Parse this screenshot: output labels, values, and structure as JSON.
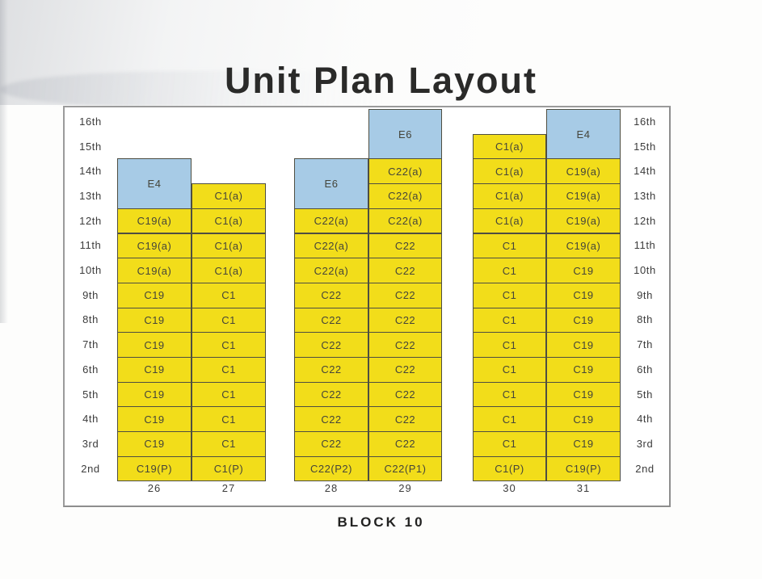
{
  "title": "Unit Plan Layout",
  "block_label": "BLOCK 10",
  "floors": [
    "16th",
    "15th",
    "14th",
    "13th",
    "12th",
    "11th",
    "10th",
    "9th",
    "8th",
    "7th",
    "6th",
    "5th",
    "4th",
    "3rd",
    "2nd"
  ],
  "colors": {
    "unit_yellow": "#F2DD1A",
    "unit_blue": "#A7CBE6",
    "cell_border": "#4E4E42",
    "frame_border": "#9B9B9B"
  },
  "stacks": [
    {
      "number": "26",
      "units": [
        {
          "label": "E4",
          "top_floor": "14th",
          "span": 2,
          "color": "blue"
        },
        {
          "label": "C19(a)",
          "top_floor": "12th",
          "span": 1,
          "color": "yellow"
        },
        {
          "label": "C19(a)",
          "top_floor": "11th",
          "span": 1,
          "color": "yellow"
        },
        {
          "label": "C19(a)",
          "top_floor": "10th",
          "span": 1,
          "color": "yellow"
        },
        {
          "label": "C19",
          "top_floor": "9th",
          "span": 1,
          "color": "yellow"
        },
        {
          "label": "C19",
          "top_floor": "8th",
          "span": 1,
          "color": "yellow"
        },
        {
          "label": "C19",
          "top_floor": "7th",
          "span": 1,
          "color": "yellow"
        },
        {
          "label": "C19",
          "top_floor": "6th",
          "span": 1,
          "color": "yellow"
        },
        {
          "label": "C19",
          "top_floor": "5th",
          "span": 1,
          "color": "yellow"
        },
        {
          "label": "C19",
          "top_floor": "4th",
          "span": 1,
          "color": "yellow"
        },
        {
          "label": "C19",
          "top_floor": "3rd",
          "span": 1,
          "color": "yellow"
        },
        {
          "label": "C19(P)",
          "top_floor": "2nd",
          "span": 1,
          "color": "yellow"
        }
      ]
    },
    {
      "number": "27",
      "units": [
        {
          "label": "C1(a)",
          "top_floor": "13th",
          "span": 1,
          "color": "yellow"
        },
        {
          "label": "C1(a)",
          "top_floor": "12th",
          "span": 1,
          "color": "yellow"
        },
        {
          "label": "C1(a)",
          "top_floor": "11th",
          "span": 1,
          "color": "yellow"
        },
        {
          "label": "C1(a)",
          "top_floor": "10th",
          "span": 1,
          "color": "yellow"
        },
        {
          "label": "C1",
          "top_floor": "9th",
          "span": 1,
          "color": "yellow"
        },
        {
          "label": "C1",
          "top_floor": "8th",
          "span": 1,
          "color": "yellow"
        },
        {
          "label": "C1",
          "top_floor": "7th",
          "span": 1,
          "color": "yellow"
        },
        {
          "label": "C1",
          "top_floor": "6th",
          "span": 1,
          "color": "yellow"
        },
        {
          "label": "C1",
          "top_floor": "5th",
          "span": 1,
          "color": "yellow"
        },
        {
          "label": "C1",
          "top_floor": "4th",
          "span": 1,
          "color": "yellow"
        },
        {
          "label": "C1",
          "top_floor": "3rd",
          "span": 1,
          "color": "yellow"
        },
        {
          "label": "C1(P)",
          "top_floor": "2nd",
          "span": 1,
          "color": "yellow"
        }
      ]
    },
    {
      "number": "28",
      "units": [
        {
          "label": "E6",
          "top_floor": "14th",
          "span": 2,
          "color": "blue"
        },
        {
          "label": "C22(a)",
          "top_floor": "12th",
          "span": 1,
          "color": "yellow"
        },
        {
          "label": "C22(a)",
          "top_floor": "11th",
          "span": 1,
          "color": "yellow"
        },
        {
          "label": "C22(a)",
          "top_floor": "10th",
          "span": 1,
          "color": "yellow"
        },
        {
          "label": "C22",
          "top_floor": "9th",
          "span": 1,
          "color": "yellow"
        },
        {
          "label": "C22",
          "top_floor": "8th",
          "span": 1,
          "color": "yellow"
        },
        {
          "label": "C22",
          "top_floor": "7th",
          "span": 1,
          "color": "yellow"
        },
        {
          "label": "C22",
          "top_floor": "6th",
          "span": 1,
          "color": "yellow"
        },
        {
          "label": "C22",
          "top_floor": "5th",
          "span": 1,
          "color": "yellow"
        },
        {
          "label": "C22",
          "top_floor": "4th",
          "span": 1,
          "color": "yellow"
        },
        {
          "label": "C22",
          "top_floor": "3rd",
          "span": 1,
          "color": "yellow"
        },
        {
          "label": "C22(P2)",
          "top_floor": "2nd",
          "span": 1,
          "color": "yellow"
        }
      ]
    },
    {
      "number": "29",
      "units": [
        {
          "label": "E6",
          "top_floor": "16th",
          "span": 2,
          "color": "blue"
        },
        {
          "label": "C22(a)",
          "top_floor": "14th",
          "span": 1,
          "color": "yellow"
        },
        {
          "label": "C22(a)",
          "top_floor": "13th",
          "span": 1,
          "color": "yellow"
        },
        {
          "label": "C22(a)",
          "top_floor": "12th",
          "span": 1,
          "color": "yellow"
        },
        {
          "label": "C22",
          "top_floor": "11th",
          "span": 1,
          "color": "yellow"
        },
        {
          "label": "C22",
          "top_floor": "10th",
          "span": 1,
          "color": "yellow"
        },
        {
          "label": "C22",
          "top_floor": "9th",
          "span": 1,
          "color": "yellow"
        },
        {
          "label": "C22",
          "top_floor": "8th",
          "span": 1,
          "color": "yellow"
        },
        {
          "label": "C22",
          "top_floor": "7th",
          "span": 1,
          "color": "yellow"
        },
        {
          "label": "C22",
          "top_floor": "6th",
          "span": 1,
          "color": "yellow"
        },
        {
          "label": "C22",
          "top_floor": "5th",
          "span": 1,
          "color": "yellow"
        },
        {
          "label": "C22",
          "top_floor": "4th",
          "span": 1,
          "color": "yellow"
        },
        {
          "label": "C22",
          "top_floor": "3rd",
          "span": 1,
          "color": "yellow"
        },
        {
          "label": "C22(P1)",
          "top_floor": "2nd",
          "span": 1,
          "color": "yellow"
        }
      ]
    },
    {
      "number": "30",
      "units": [
        {
          "label": "C1(a)",
          "top_floor": "15th",
          "span": 1,
          "color": "yellow"
        },
        {
          "label": "C1(a)",
          "top_floor": "14th",
          "span": 1,
          "color": "yellow"
        },
        {
          "label": "C1(a)",
          "top_floor": "13th",
          "span": 1,
          "color": "yellow"
        },
        {
          "label": "C1(a)",
          "top_floor": "12th",
          "span": 1,
          "color": "yellow"
        },
        {
          "label": "C1",
          "top_floor": "11th",
          "span": 1,
          "color": "yellow"
        },
        {
          "label": "C1",
          "top_floor": "10th",
          "span": 1,
          "color": "yellow"
        },
        {
          "label": "C1",
          "top_floor": "9th",
          "span": 1,
          "color": "yellow"
        },
        {
          "label": "C1",
          "top_floor": "8th",
          "span": 1,
          "color": "yellow"
        },
        {
          "label": "C1",
          "top_floor": "7th",
          "span": 1,
          "color": "yellow"
        },
        {
          "label": "C1",
          "top_floor": "6th",
          "span": 1,
          "color": "yellow"
        },
        {
          "label": "C1",
          "top_floor": "5th",
          "span": 1,
          "color": "yellow"
        },
        {
          "label": "C1",
          "top_floor": "4th",
          "span": 1,
          "color": "yellow"
        },
        {
          "label": "C1",
          "top_floor": "3rd",
          "span": 1,
          "color": "yellow"
        },
        {
          "label": "C1(P)",
          "top_floor": "2nd",
          "span": 1,
          "color": "yellow"
        }
      ]
    },
    {
      "number": "31",
      "units": [
        {
          "label": "E4",
          "top_floor": "16th",
          "span": 2,
          "color": "blue"
        },
        {
          "label": "C19(a)",
          "top_floor": "14th",
          "span": 1,
          "color": "yellow"
        },
        {
          "label": "C19(a)",
          "top_floor": "13th",
          "span": 1,
          "color": "yellow"
        },
        {
          "label": "C19(a)",
          "top_floor": "12th",
          "span": 1,
          "color": "yellow"
        },
        {
          "label": "C19(a)",
          "top_floor": "11th",
          "span": 1,
          "color": "yellow"
        },
        {
          "label": "C19",
          "top_floor": "10th",
          "span": 1,
          "color": "yellow"
        },
        {
          "label": "C19",
          "top_floor": "9th",
          "span": 1,
          "color": "yellow"
        },
        {
          "label": "C19",
          "top_floor": "8th",
          "span": 1,
          "color": "yellow"
        },
        {
          "label": "C19",
          "top_floor": "7th",
          "span": 1,
          "color": "yellow"
        },
        {
          "label": "C19",
          "top_floor": "6th",
          "span": 1,
          "color": "yellow"
        },
        {
          "label": "C19",
          "top_floor": "5th",
          "span": 1,
          "color": "yellow"
        },
        {
          "label": "C19",
          "top_floor": "4th",
          "span": 1,
          "color": "yellow"
        },
        {
          "label": "C19",
          "top_floor": "3rd",
          "span": 1,
          "color": "yellow"
        },
        {
          "label": "C19(P)",
          "top_floor": "2nd",
          "span": 1,
          "color": "yellow"
        }
      ]
    }
  ]
}
